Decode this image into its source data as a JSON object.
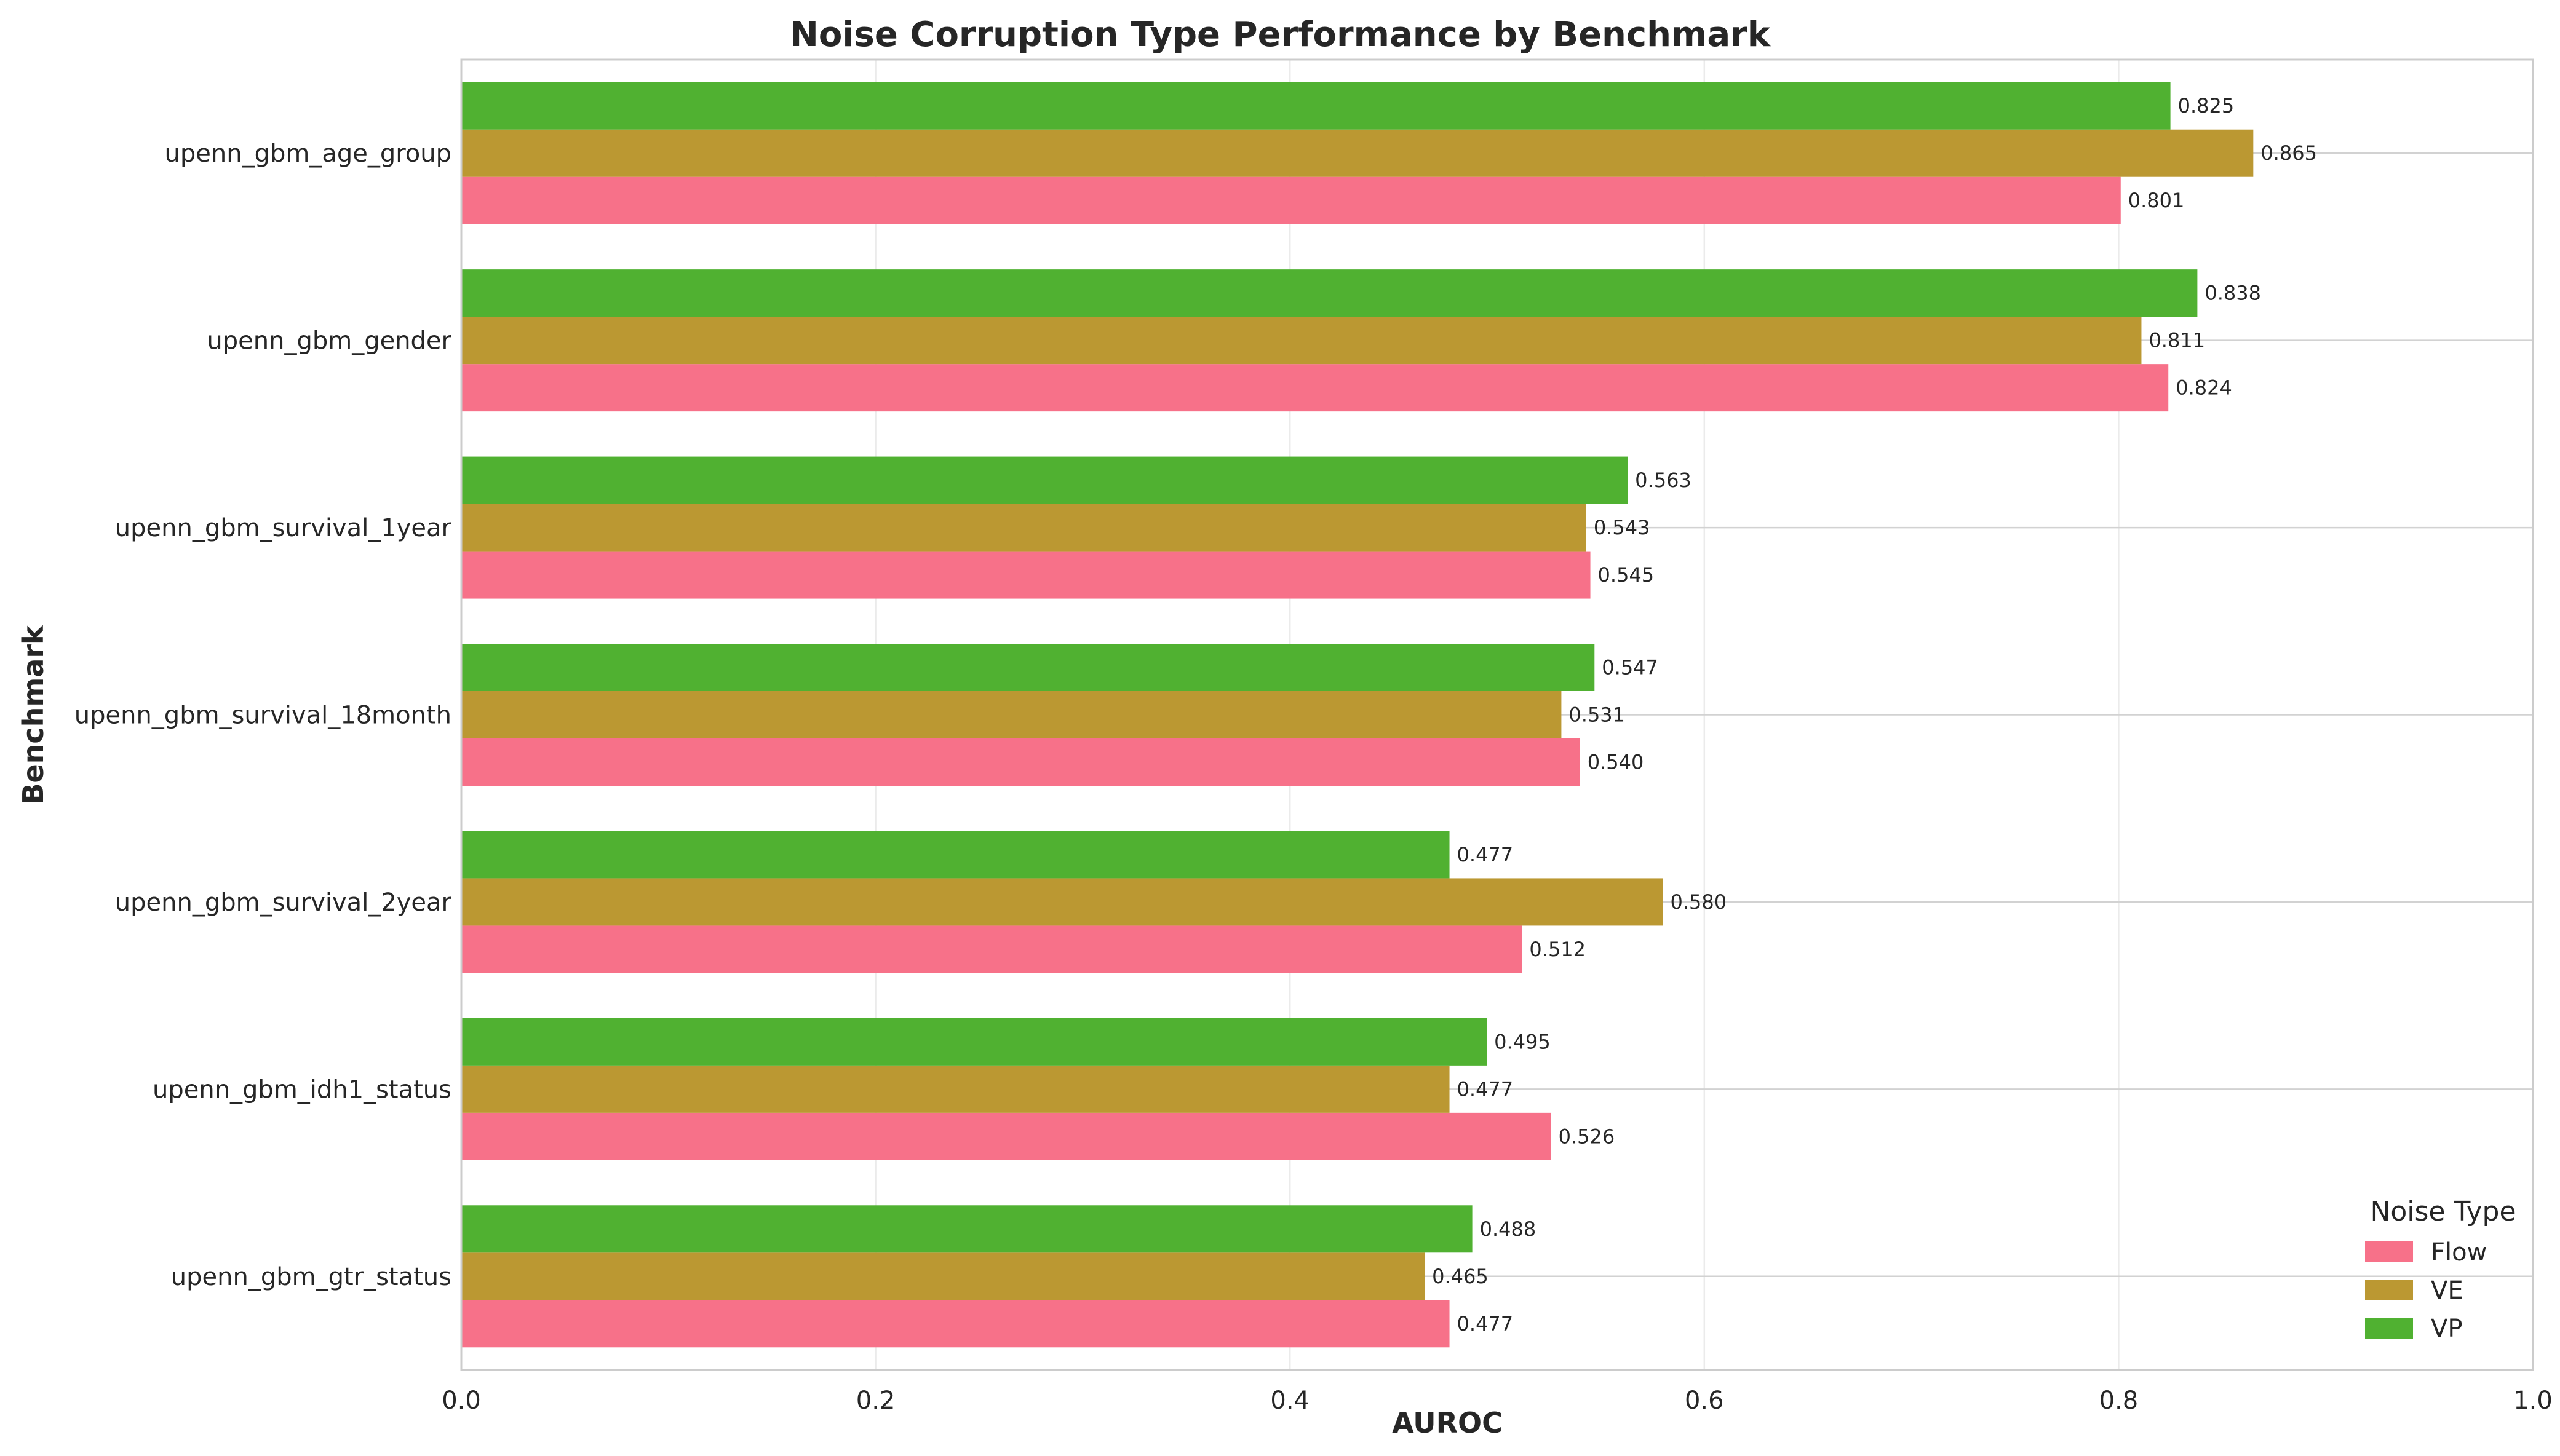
{
  "chart_data": {
    "type": "bar",
    "orientation": "horizontal",
    "title": "Noise Corruption Type Performance by Benchmark",
    "xlabel": "AUROC",
    "ylabel": "Benchmark",
    "xlim": [
      0.0,
      1.0
    ],
    "xticks": [
      "0.0",
      "0.2",
      "0.4",
      "0.6",
      "0.8",
      "1.0"
    ],
    "grid": true,
    "categories": [
      "upenn_gbm_age_group",
      "upenn_gbm_gender",
      "upenn_gbm_survival_1year",
      "upenn_gbm_survival_18month",
      "upenn_gbm_survival_2year",
      "upenn_gbm_idh1_status",
      "upenn_gbm_gtr_status"
    ],
    "series": [
      {
        "name": "Flow",
        "color": "#f77189",
        "values": [
          0.801,
          0.824,
          0.545,
          0.54,
          0.512,
          0.526,
          0.477
        ],
        "labels": [
          "0.801",
          "0.824",
          "0.545",
          "0.540",
          "0.512",
          "0.526",
          "0.477"
        ]
      },
      {
        "name": "VE",
        "color": "#bb9832",
        "values": [
          0.865,
          0.811,
          0.543,
          0.531,
          0.58,
          0.477,
          0.465
        ],
        "labels": [
          "0.865",
          "0.811",
          "0.543",
          "0.531",
          "0.580",
          "0.477",
          "0.465"
        ]
      },
      {
        "name": "VP",
        "color": "#50b131",
        "values": [
          0.825,
          0.838,
          0.563,
          0.547,
          0.477,
          0.495,
          0.488
        ],
        "labels": [
          "0.825",
          "0.838",
          "0.563",
          "0.547",
          "0.477",
          "0.495",
          "0.488"
        ]
      }
    ],
    "legend": {
      "title": "Noise Type",
      "placement": "lower-right"
    }
  }
}
